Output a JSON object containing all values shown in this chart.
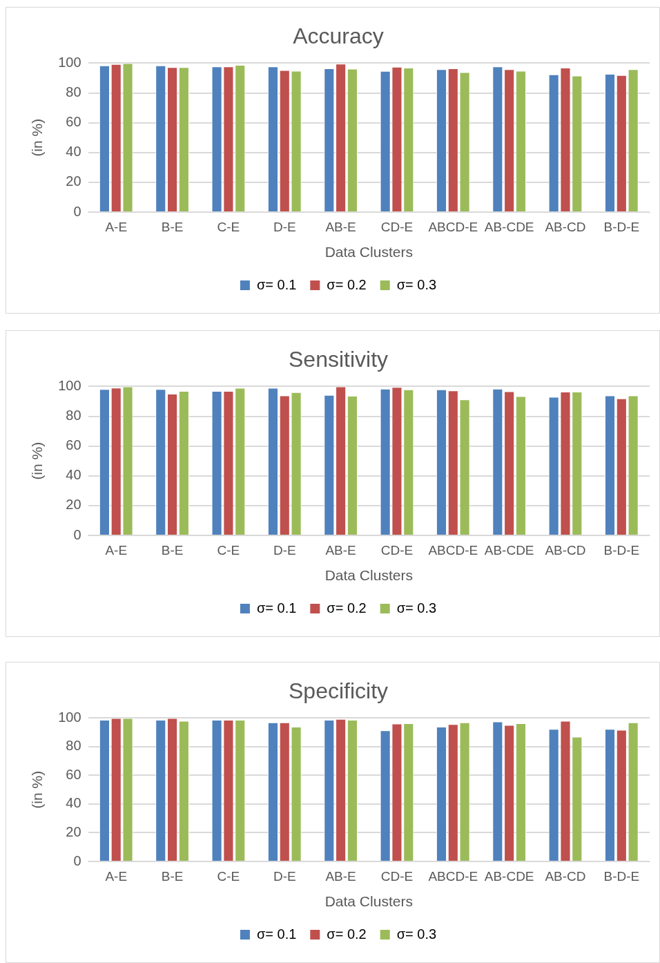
{
  "chart_data": [
    {
      "type": "bar",
      "title": "Accuracy",
      "xlabel": "Data Clusters",
      "ylabel": "(in %)",
      "categories": [
        "A-E",
        "B-E",
        "C-E",
        "D-E",
        "AB-E",
        "CD-E",
        "ABCD-E",
        "AB-CDE",
        "AB-CD",
        "B-D-E"
      ],
      "ylim": [
        0,
        100
      ],
      "yticks": [
        0,
        20,
        40,
        60,
        80,
        100
      ],
      "grid": "y",
      "legend": "bottom",
      "series": [
        {
          "name": "σ= 0.1",
          "color": "#4f81bd",
          "values": [
            98.4,
            98.4,
            97.8,
            97.8,
            96.5,
            94.7,
            95.9,
            97.8,
            92.4,
            92.8
          ]
        },
        {
          "name": "σ= 0.2",
          "color": "#c0504d",
          "values": [
            99.4,
            97.3,
            97.8,
            95.3,
            99.6,
            97.5,
            96.5,
            95.9,
            96.9,
            92.0
          ]
        },
        {
          "name": "σ= 0.3",
          "color": "#9bbb59",
          "values": [
            100,
            97.3,
            98.8,
            94.9,
            96.3,
            96.9,
            93.9,
            94.9,
            91.6,
            95.9
          ]
        }
      ]
    },
    {
      "type": "bar",
      "title": "Sensitivity",
      "xlabel": "Data Clusters",
      "ylabel": "(in %)",
      "categories": [
        "A-E",
        "B-E",
        "C-E",
        "D-E",
        "AB-E",
        "CD-E",
        "ABCD-E",
        "AB-CDE",
        "AB-CD",
        "B-D-E"
      ],
      "ylim": [
        0,
        100
      ],
      "yticks": [
        0,
        20,
        40,
        60,
        80,
        100
      ],
      "grid": "y",
      "legend": "bottom",
      "series": [
        {
          "name": "σ= 0.1",
          "color": "#4f81bd",
          "values": [
            98.2,
            98.2,
            96.9,
            99.0,
            94.3,
            98.4,
            98.0,
            98.4,
            93.0,
            93.9
          ]
        },
        {
          "name": "σ= 0.2",
          "color": "#c0504d",
          "values": [
            99.2,
            95.1,
            96.9,
            93.9,
            100,
            99.6,
            97.3,
            96.7,
            96.5,
            92.0
          ]
        },
        {
          "name": "σ= 0.3",
          "color": "#9bbb59",
          "values": [
            100,
            96.9,
            99.0,
            96.1,
            93.7,
            98.0,
            91.2,
            93.5,
            96.5,
            93.9
          ]
        }
      ]
    },
    {
      "type": "bar",
      "title": "Specificity",
      "xlabel": "Data Clusters",
      "ylabel": "(in %)",
      "categories": [
        "A-E",
        "B-E",
        "C-E",
        "D-E",
        "AB-E",
        "CD-E",
        "ABCD-E",
        "AB-CDE",
        "AB-CD",
        "B-D-E"
      ],
      "ylim": [
        0,
        100
      ],
      "yticks": [
        0,
        20,
        40,
        60,
        80,
        100
      ],
      "grid": "y",
      "legend": "bottom",
      "series": [
        {
          "name": "σ= 0.1",
          "color": "#4f81bd",
          "values": [
            98.8,
            98.8,
            98.8,
            96.9,
            98.8,
            91.4,
            93.9,
            97.5,
            92.4,
            92.4
          ]
        },
        {
          "name": "σ= 0.2",
          "color": "#c0504d",
          "values": [
            100,
            100,
            98.8,
            96.9,
            99.4,
            96.1,
            95.7,
            95.1,
            98.0,
            91.8
          ]
        },
        {
          "name": "σ= 0.3",
          "color": "#9bbb59",
          "values": [
            100,
            98.0,
            98.8,
            93.9,
            98.8,
            96.3,
            96.9,
            96.3,
            86.9,
            96.9
          ]
        }
      ]
    }
  ]
}
